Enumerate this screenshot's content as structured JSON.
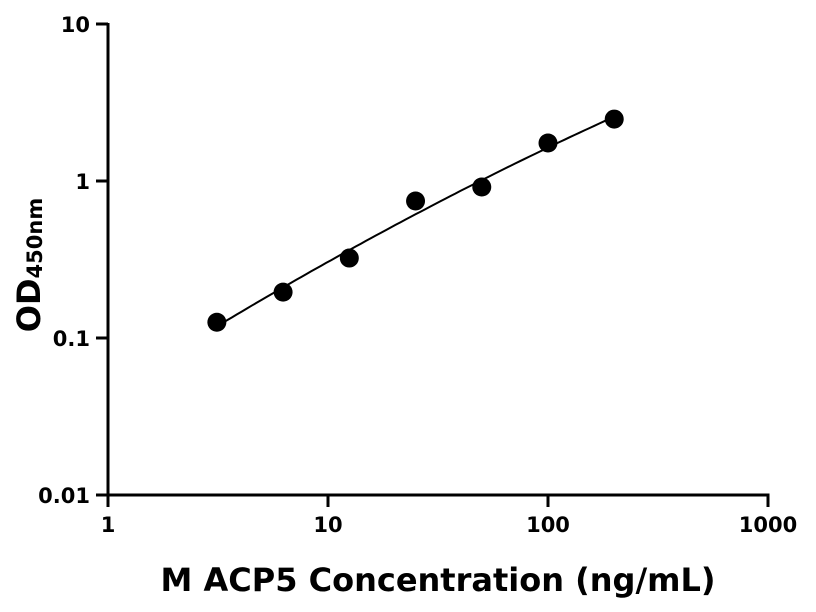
{
  "chart_data": {
    "type": "scatter",
    "title": "",
    "xlabel": "M ACP5 Concentration (ng/mL)",
    "ylabel": "OD",
    "ylabel_subscript": "450nm",
    "x_scale": "log",
    "y_scale": "log",
    "xlim": [
      1,
      1000
    ],
    "ylim": [
      0.01,
      10
    ],
    "x_ticks": [
      "1",
      "10",
      "100",
      "1000"
    ],
    "y_ticks": [
      "0.01",
      "0.1",
      "1",
      "10"
    ],
    "grid": false,
    "fit_curve": true,
    "series": [
      {
        "x": [
          3.125,
          6.25,
          12.5,
          25,
          50,
          100,
          200
        ],
        "y": [
          0.126,
          0.196,
          0.323,
          0.746,
          0.916,
          1.746,
          2.48
        ]
      }
    ],
    "colors": {
      "points": "#000000",
      "curve": "#000000",
      "axes": "#000000"
    }
  }
}
